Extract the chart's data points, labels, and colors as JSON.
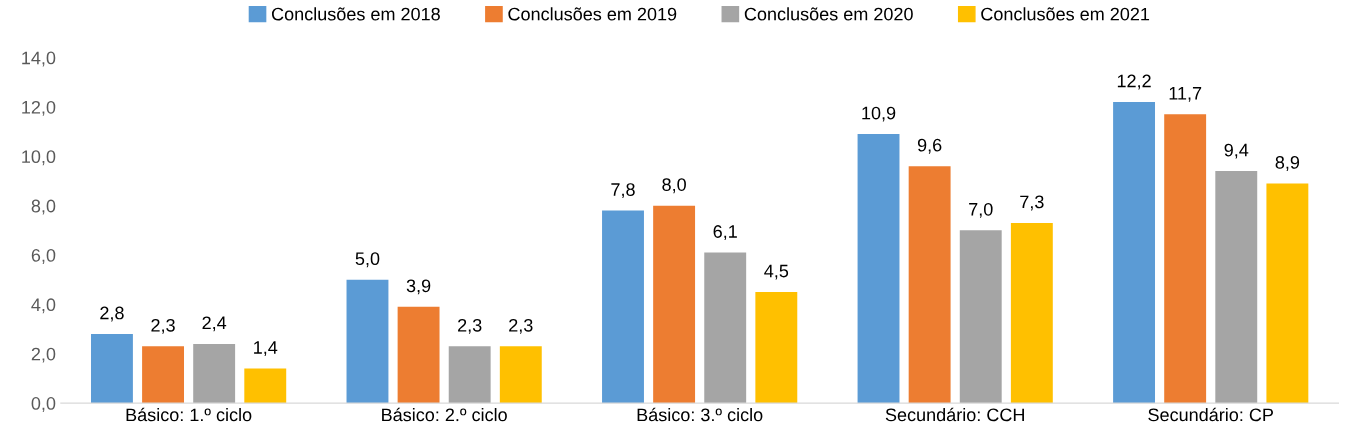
{
  "chart_data": {
    "type": "bar",
    "categories": [
      "Básico: 1.º ciclo",
      "Básico: 2.º ciclo",
      "Básico: 3.º ciclo",
      "Secundário: CCH",
      "Secundário: CP"
    ],
    "series": [
      {
        "name": "Conclusões em 2018",
        "color": "#5b9bd5",
        "values": [
          2.8,
          5.0,
          7.8,
          10.9,
          12.2
        ],
        "value_labels": [
          "2,8",
          "5,0",
          "7,8",
          "10,9",
          "12,2"
        ]
      },
      {
        "name": "Conclusões em 2019",
        "color": "#ed7d31",
        "values": [
          2.3,
          3.9,
          8.0,
          9.6,
          11.7
        ],
        "value_labels": [
          "2,3",
          "3,9",
          "8,0",
          "9,6",
          "11,7"
        ]
      },
      {
        "name": "Conclusões em 2020",
        "color": "#a5a5a5",
        "values": [
          2.4,
          2.3,
          6.1,
          7.0,
          9.4
        ],
        "value_labels": [
          "2,4",
          "2,3",
          "6,1",
          "7,0",
          "9,4"
        ]
      },
      {
        "name": "Conclusões em 2021",
        "color": "#ffc000",
        "values": [
          1.4,
          2.3,
          4.5,
          7.3,
          8.9
        ],
        "value_labels": [
          "1,4",
          "2,3",
          "4,5",
          "7,3",
          "8,9"
        ]
      }
    ],
    "ylim": [
      0,
      14
    ],
    "yticks": [
      {
        "value": 0,
        "label": "0,0"
      },
      {
        "value": 2,
        "label": "2,0"
      },
      {
        "value": 4,
        "label": "4,0"
      },
      {
        "value": 6,
        "label": "6,0"
      },
      {
        "value": 8,
        "label": "8,0"
      },
      {
        "value": 10,
        "label": "10,0"
      },
      {
        "value": 12,
        "label": "12,0"
      },
      {
        "value": 14,
        "label": "14,0"
      }
    ],
    "grid": false,
    "legend": "top"
  }
}
